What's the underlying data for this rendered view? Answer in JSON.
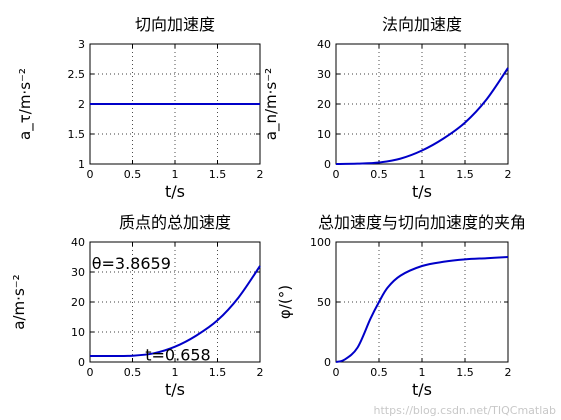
{
  "chart_data": [
    {
      "type": "line",
      "title": "切向加速度",
      "xlabel": "t/s",
      "ylabel": "a_τ/m·s⁻²",
      "xlim": [
        0,
        2
      ],
      "ylim": [
        1,
        3
      ],
      "xticks": [
        "0",
        "0.5",
        "1",
        "1.5",
        "2"
      ],
      "yticks": [
        "1",
        "1.5",
        "2",
        "2.5",
        "3"
      ],
      "grid": true,
      "series": [
        {
          "x": [
            0,
            0.5,
            1,
            1.5,
            2
          ],
          "values": [
            2,
            2,
            2,
            2,
            2
          ]
        }
      ],
      "color": "#0000c8"
    },
    {
      "type": "line",
      "title": "法向加速度",
      "xlabel": "t/s",
      "ylabel": "a_n/m·s⁻²",
      "xlim": [
        0,
        2
      ],
      "ylim": [
        0,
        40
      ],
      "xticks": [
        "0",
        "0.5",
        "1",
        "1.5",
        "2"
      ],
      "yticks": [
        "0",
        "10",
        "20",
        "30",
        "40"
      ],
      "grid": true,
      "series": [
        {
          "x": [
            0,
            0.25,
            0.5,
            0.75,
            1,
            1.25,
            1.5,
            1.75,
            2
          ],
          "values": [
            0,
            0.13,
            0.5,
            1.8,
            4.5,
            8.5,
            13.8,
            21.5,
            32
          ]
        }
      ],
      "color": "#0000c8"
    },
    {
      "type": "line",
      "title": "质点的总加速度",
      "xlabel": "t/s",
      "ylabel": "a/m·s⁻²",
      "xlim": [
        0,
        2
      ],
      "ylim": [
        0,
        40
      ],
      "xticks": [
        "0",
        "0.5",
        "1",
        "1.5",
        "2"
      ],
      "yticks": [
        "0",
        "10",
        "20",
        "30",
        "40"
      ],
      "grid": true,
      "annotations": [
        {
          "text": "θ=3.8659",
          "x": 0.02,
          "y": 31
        },
        {
          "text": "t=0.658",
          "x": 0.65,
          "y": 0.5
        }
      ],
      "series": [
        {
          "x": [
            0,
            0.25,
            0.5,
            0.75,
            1,
            1.25,
            1.5,
            1.75,
            2
          ],
          "values": [
            2,
            2,
            2.1,
            2.9,
            5.1,
            8.8,
            13.9,
            21.6,
            32
          ]
        }
      ],
      "color": "#0000c8"
    },
    {
      "type": "line",
      "title": "总加速度与切向加速度的夹角",
      "xlabel": "t/s",
      "ylabel": "φ/(°)",
      "xlim": [
        0,
        2
      ],
      "ylim": [
        0,
        100
      ],
      "xticks": [
        "0",
        "0.5",
        "1",
        "1.5",
        "2"
      ],
      "yticks": [
        "0",
        "50",
        "100"
      ],
      "grid": true,
      "series": [
        {
          "x": [
            0,
            0.1,
            0.25,
            0.4,
            0.5,
            0.6,
            0.75,
            1,
            1.25,
            1.5,
            1.75,
            2
          ],
          "values": [
            0,
            2,
            12,
            36,
            50,
            62,
            72,
            80,
            83.5,
            85.5,
            86.5,
            87.5
          ]
        }
      ],
      "color": "#0000c8"
    }
  ],
  "watermark": "https://blog.csdn.net/TIQCmatlab"
}
